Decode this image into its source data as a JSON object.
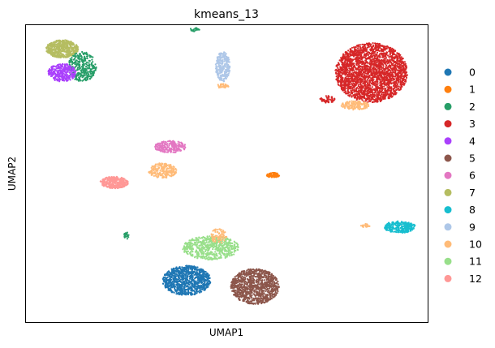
{
  "chart_data": {
    "type": "scatter",
    "title": "kmeans_13",
    "xlabel": "UMAP1",
    "ylabel": "UMAP2",
    "xticks": false,
    "yticks": false,
    "grid": false,
    "legend_placement": "right",
    "xlim": [
      0,
      100
    ],
    "ylim": [
      0,
      100
    ],
    "series": [
      {
        "name": "0",
        "color": "#1f77b4"
      },
      {
        "name": "1",
        "color": "#ff7f0e"
      },
      {
        "name": "2",
        "color": "#279e68"
      },
      {
        "name": "3",
        "color": "#d62728"
      },
      {
        "name": "4",
        "color": "#aa40fc"
      },
      {
        "name": "5",
        "color": "#8c564b"
      },
      {
        "name": "6",
        "color": "#e377c2"
      },
      {
        "name": "7",
        "color": "#b5bd61"
      },
      {
        "name": "8",
        "color": "#17becf"
      },
      {
        "name": "9",
        "color": "#aec7e8"
      },
      {
        "name": "10",
        "color": "#ffbb78"
      },
      {
        "name": "11",
        "color": "#98df8a"
      },
      {
        "name": "12",
        "color": "#ff9896"
      }
    ],
    "clusters": [
      {
        "series": "7",
        "x": 9,
        "y": 92,
        "rx": 4,
        "ry": 3,
        "n": 520
      },
      {
        "series": "2",
        "x": 14,
        "y": 86,
        "rx": 3.5,
        "ry": 5,
        "n": 320
      },
      {
        "series": "4",
        "x": 9,
        "y": 84,
        "rx": 3.5,
        "ry": 3,
        "n": 300
      },
      {
        "series": "2",
        "x": 42,
        "y": 98.5,
        "rx": 1.2,
        "ry": 0.6,
        "n": 25
      },
      {
        "series": "9",
        "x": 49,
        "y": 86,
        "rx": 1.8,
        "ry": 5,
        "n": 260
      },
      {
        "series": "10",
        "x": 49,
        "y": 79.5,
        "rx": 1.5,
        "ry": 0.7,
        "n": 40
      },
      {
        "series": "3",
        "x": 86,
        "y": 84,
        "rx": 9,
        "ry": 10,
        "n": 2400
      },
      {
        "series": "10",
        "x": 82,
        "y": 73,
        "rx": 3.5,
        "ry": 1.5,
        "n": 150
      },
      {
        "series": "3",
        "x": 75,
        "y": 75,
        "rx": 2,
        "ry": 1.2,
        "n": 50
      },
      {
        "series": "6",
        "x": 36,
        "y": 59,
        "rx": 4,
        "ry": 2,
        "n": 240
      },
      {
        "series": "10",
        "x": 34,
        "y": 51,
        "rx": 3.5,
        "ry": 2.5,
        "n": 220
      },
      {
        "series": "12",
        "x": 22,
        "y": 47,
        "rx": 3.5,
        "ry": 2,
        "n": 320
      },
      {
        "series": "1",
        "x": 61.5,
        "y": 49.5,
        "rx": 1.6,
        "ry": 0.8,
        "n": 90
      },
      {
        "series": "8",
        "x": 93,
        "y": 32,
        "rx": 4,
        "ry": 2,
        "n": 260
      },
      {
        "series": "10",
        "x": 84.5,
        "y": 32.5,
        "rx": 1.2,
        "ry": 0.6,
        "n": 25
      },
      {
        "series": "2",
        "x": 25,
        "y": 29,
        "rx": 0.6,
        "ry": 1.3,
        "n": 20
      },
      {
        "series": "11",
        "x": 46,
        "y": 25,
        "rx": 7,
        "ry": 4,
        "n": 600
      },
      {
        "series": "10",
        "x": 48,
        "y": 29,
        "rx": 2,
        "ry": 2.5,
        "n": 80
      },
      {
        "series": "0",
        "x": 40,
        "y": 14,
        "rx": 6,
        "ry": 5,
        "n": 900
      },
      {
        "series": "5",
        "x": 57,
        "y": 12,
        "rx": 6,
        "ry": 6,
        "n": 1000
      }
    ]
  }
}
